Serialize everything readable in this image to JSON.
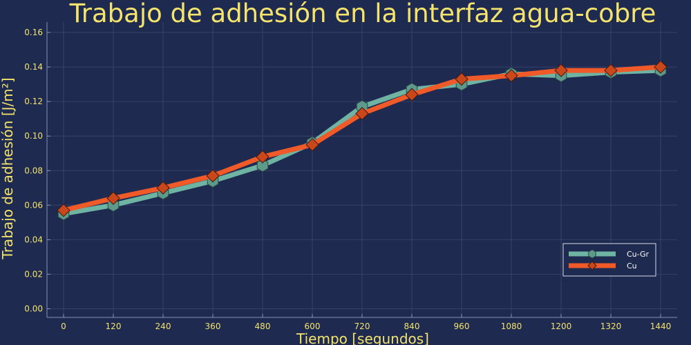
{
  "chart_data": {
    "type": "line",
    "title": "Trabajo de adhesión en la interfaz agua-cobre",
    "xlabel": "Tiempo [segundos]",
    "ylabel": "Trabajo de adhesión [J/m²]",
    "x": [
      0,
      120,
      240,
      360,
      480,
      600,
      720,
      840,
      960,
      1080,
      1200,
      1320,
      1440
    ],
    "xlim": [
      -40,
      1480
    ],
    "ylim": [
      -0.005,
      0.166
    ],
    "xticks": [
      "0",
      "120",
      "240",
      "360",
      "480",
      "600",
      "720",
      "840",
      "960",
      "1080",
      "1200",
      "1320",
      "1440"
    ],
    "yticks": [
      "0.00",
      "0.02",
      "0.04",
      "0.06",
      "0.08",
      "0.10",
      "0.12",
      "0.14",
      "0.16"
    ],
    "grid": true,
    "legend_position": "bottom-right",
    "series": [
      {
        "name": "Cu-Gr",
        "color": "#6fb3a3",
        "marker": "hexagon",
        "values": [
          0.055,
          0.06,
          0.067,
          0.074,
          0.083,
          0.096,
          0.117,
          0.127,
          0.13,
          0.136,
          0.135,
          0.137,
          0.138
        ]
      },
      {
        "name": "Cu",
        "color": "#f05a28",
        "marker": "diamond",
        "values": [
          0.057,
          0.064,
          0.07,
          0.077,
          0.088,
          0.095,
          0.113,
          0.124,
          0.133,
          0.135,
          0.138,
          0.138,
          0.14
        ]
      }
    ],
    "colors": {
      "background": "#1e2a4f",
      "text": "#f4e36d",
      "grid": "#36426a",
      "axis": "#8a93b4",
      "legend_text": "#ffffff"
    }
  }
}
